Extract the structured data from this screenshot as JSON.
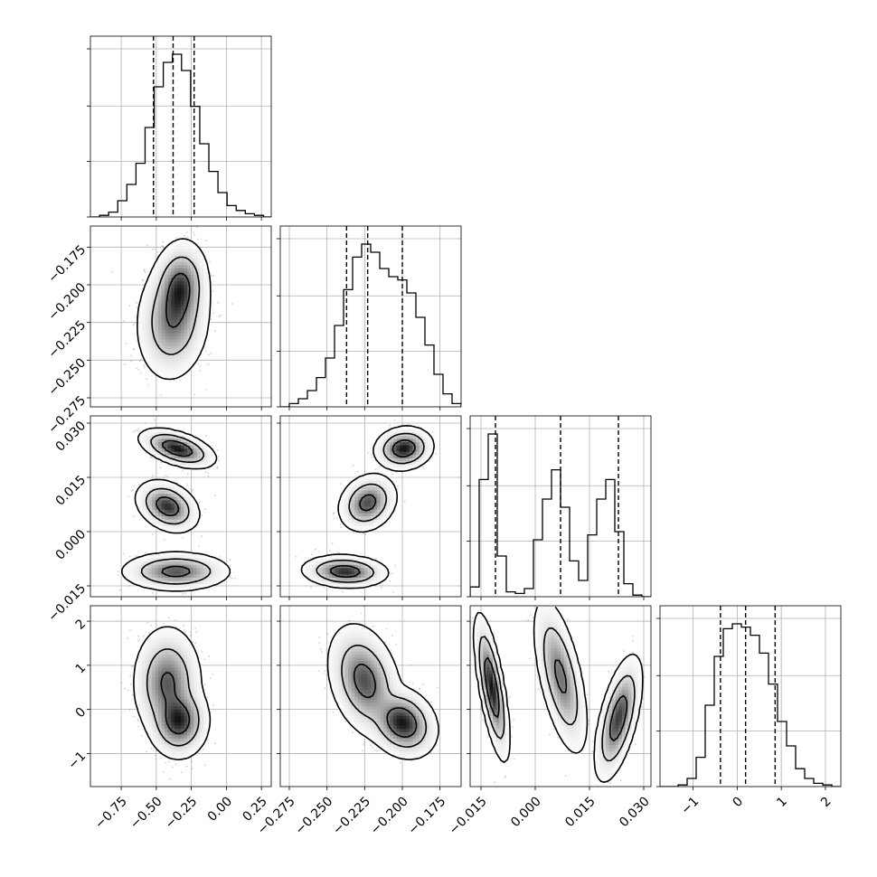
{
  "chart_data": {
    "type": "corner",
    "title": "",
    "xlabel": "",
    "ylabel": "",
    "grid": true,
    "line_color": "#000000",
    "grid_color": "#b0b0b0",
    "scatter_color": "#7a7a7a",
    "params": [
      {
        "index": 0,
        "range": [
          -0.97,
          0.32
        ],
        "ticks": [
          -0.75,
          -0.5,
          -0.25,
          0.0,
          0.25
        ],
        "tick_labels": [
          "−0.75",
          "−0.50",
          "−0.25",
          "0.00",
          "0.25"
        ]
      },
      {
        "index": 1,
        "range": [
          -0.281,
          -0.161
        ],
        "ticks": [
          -0.275,
          -0.25,
          -0.225,
          -0.2,
          -0.175
        ],
        "tick_labels": [
          "−0.275",
          "−0.250",
          "−0.225",
          "−0.200",
          "−0.175"
        ]
      },
      {
        "index": 2,
        "range": [
          -0.018,
          0.032
        ],
        "ticks": [
          -0.015,
          0.0,
          0.015,
          0.03
        ],
        "tick_labels": [
          "−0.015",
          "0.000",
          "0.015",
          "0.030"
        ]
      },
      {
        "index": 3,
        "range": [
          -1.75,
          2.35
        ],
        "ticks": [
          -1,
          0,
          1,
          2
        ],
        "tick_labels": [
          "−1",
          "0",
          "1",
          "2"
        ]
      }
    ],
    "marginals": [
      {
        "param": 0,
        "quantiles": [
          -0.52,
          -0.38,
          -0.23
        ],
        "bin_edges": [
          -0.97,
          -0.905,
          -0.84,
          -0.775,
          -0.71,
          -0.645,
          -0.58,
          -0.515,
          -0.45,
          -0.385,
          -0.32,
          -0.255,
          -0.19,
          -0.125,
          -0.06,
          0.005,
          0.07,
          0.135,
          0.2,
          0.265,
          0.32
        ],
        "counts": [
          0.0,
          0.01,
          0.03,
          0.1,
          0.2,
          0.33,
          0.55,
          0.8,
          0.95,
          1.0,
          0.9,
          0.68,
          0.45,
          0.28,
          0.15,
          0.07,
          0.04,
          0.02,
          0.01,
          0.0
        ]
      },
      {
        "param": 1,
        "quantiles": [
          -0.237,
          -0.223,
          -0.2
        ],
        "bin_edges": [
          -0.281,
          -0.275,
          -0.269,
          -0.263,
          -0.257,
          -0.251,
          -0.245,
          -0.239,
          -0.233,
          -0.227,
          -0.221,
          -0.215,
          -0.209,
          -0.203,
          -0.197,
          -0.191,
          -0.185,
          -0.179,
          -0.173,
          -0.167,
          -0.161
        ],
        "counts": [
          0.0,
          0.02,
          0.05,
          0.1,
          0.18,
          0.3,
          0.5,
          0.72,
          0.92,
          1.0,
          0.95,
          0.85,
          0.8,
          0.78,
          0.7,
          0.55,
          0.38,
          0.2,
          0.08,
          0.02
        ]
      },
      {
        "param": 2,
        "quantiles": [
          -0.011,
          0.007,
          0.023
        ],
        "bin_edges": [
          -0.018,
          -0.0155,
          -0.013,
          -0.0105,
          -0.008,
          -0.0055,
          -0.003,
          -0.0005,
          0.002,
          0.0045,
          0.007,
          0.0095,
          0.012,
          0.0145,
          0.017,
          0.0195,
          0.022,
          0.0245,
          0.027,
          0.0295,
          0.032
        ],
        "counts": [
          0.06,
          0.72,
          1.0,
          0.25,
          0.03,
          0.02,
          0.05,
          0.35,
          0.6,
          0.78,
          0.55,
          0.22,
          0.1,
          0.38,
          0.6,
          0.72,
          0.4,
          0.08,
          0.01,
          0.0
        ]
      },
      {
        "param": 3,
        "quantiles": [
          -0.38,
          0.19,
          0.86
        ],
        "bin_edges": [
          -1.75,
          -1.545,
          -1.34,
          -1.135,
          -0.93,
          -0.725,
          -0.52,
          -0.315,
          -0.11,
          0.095,
          0.3,
          0.505,
          0.71,
          0.915,
          1.12,
          1.325,
          1.53,
          1.735,
          1.94,
          2.145,
          2.35
        ],
        "counts": [
          0.0,
          0.0,
          0.01,
          0.05,
          0.18,
          0.5,
          0.8,
          0.97,
          1.0,
          0.98,
          0.93,
          0.82,
          0.63,
          0.4,
          0.25,
          0.11,
          0.05,
          0.02,
          0.01,
          0.0
        ]
      }
    ],
    "joint_2d": [
      {
        "x_param": 0,
        "y_param": 1,
        "modes": [
          {
            "cx": -0.38,
            "cy": -0.223,
            "sx": 0.09,
            "sy": 0.014,
            "rho": 0.1,
            "w": 0.55
          },
          {
            "cx": -0.33,
            "cy": -0.202,
            "sx": 0.07,
            "sy": 0.011,
            "rho": 0.1,
            "w": 0.45
          }
        ]
      },
      {
        "x_param": 0,
        "y_param": 2,
        "modes": [
          {
            "cx": -0.35,
            "cy": 0.023,
            "sx": 0.09,
            "sy": 0.0018,
            "rho": -0.5,
            "w": 0.34
          },
          {
            "cx": -0.42,
            "cy": 0.007,
            "sx": 0.075,
            "sy": 0.0024,
            "rho": -0.3,
            "w": 0.33
          },
          {
            "cx": -0.36,
            "cy": -0.011,
            "sx": 0.13,
            "sy": 0.0018,
            "rho": 0.0,
            "w": 0.33
          }
        ]
      },
      {
        "x_param": 0,
        "y_param": 3,
        "modes": [
          {
            "cx": -0.42,
            "cy": 0.6,
            "sx": 0.085,
            "sy": 0.45,
            "rho": 0.0,
            "w": 0.55
          },
          {
            "cx": -0.34,
            "cy": -0.25,
            "sx": 0.075,
            "sy": 0.3,
            "rho": 0.0,
            "w": 0.45
          }
        ]
      },
      {
        "x_param": 1,
        "y_param": 2,
        "modes": [
          {
            "cx": -0.199,
            "cy": 0.023,
            "sx": 0.0065,
            "sy": 0.002,
            "rho": 0.1,
            "w": 0.34
          },
          {
            "cx": -0.223,
            "cy": 0.008,
            "sx": 0.0065,
            "sy": 0.0027,
            "rho": 0.2,
            "w": 0.33
          },
          {
            "cx": -0.238,
            "cy": -0.011,
            "sx": 0.0095,
            "sy": 0.0015,
            "rho": -0.1,
            "w": 0.33
          }
        ]
      },
      {
        "x_param": 1,
        "y_param": 3,
        "modes": [
          {
            "cx": -0.225,
            "cy": 0.65,
            "sx": 0.0085,
            "sy": 0.45,
            "rho": -0.3,
            "w": 0.55
          },
          {
            "cx": -0.2,
            "cy": -0.3,
            "sx": 0.008,
            "sy": 0.28,
            "rho": -0.2,
            "w": 0.45
          }
        ]
      },
      {
        "x_param": 2,
        "y_param": 3,
        "modes": [
          {
            "cx": -0.012,
            "cy": 0.5,
            "sx": 0.0016,
            "sy": 0.55,
            "rho": -0.7,
            "w": 0.34
          },
          {
            "cx": 0.007,
            "cy": 0.75,
            "sx": 0.0025,
            "sy": 0.6,
            "rho": -0.6,
            "w": 0.33
          },
          {
            "cx": 0.023,
            "cy": -0.2,
            "sx": 0.0022,
            "sy": 0.48,
            "rho": 0.6,
            "w": 0.33
          }
        ]
      }
    ]
  }
}
